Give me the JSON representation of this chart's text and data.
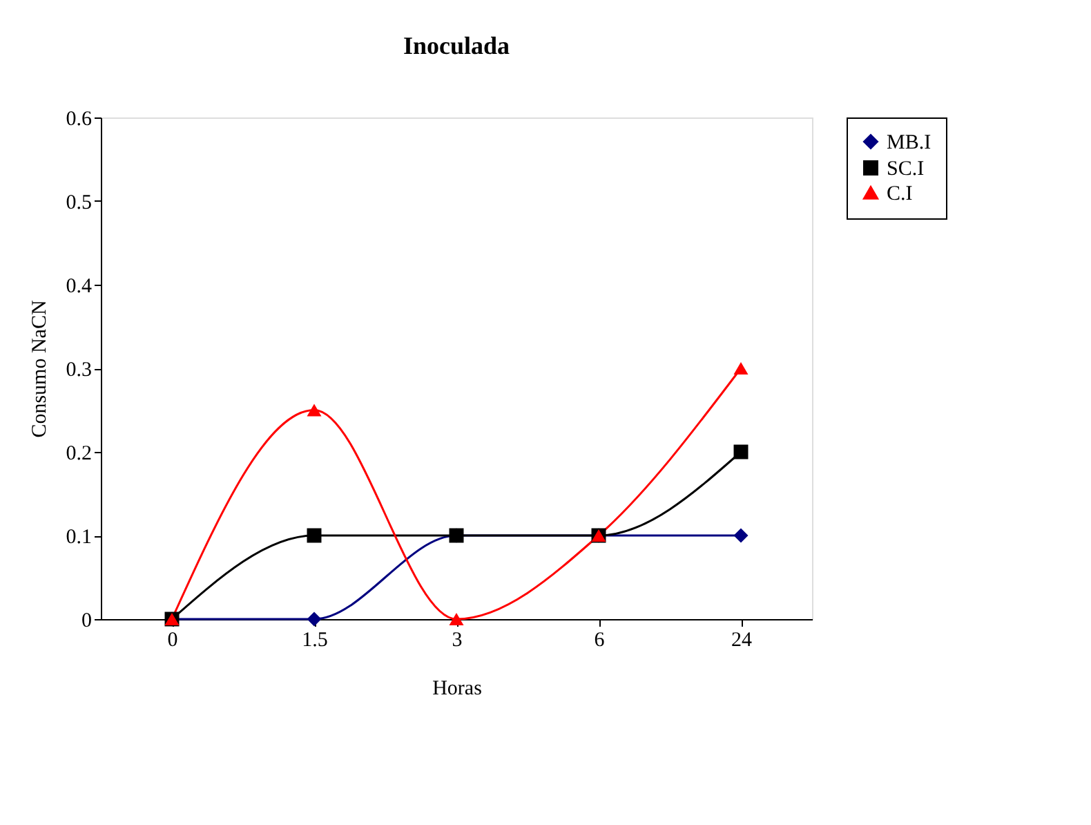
{
  "chart_data": {
    "type": "line",
    "title": "Inoculada",
    "xlabel": "Horas",
    "ylabel": "Consumo NaCN",
    "categories": [
      "0",
      "1.5",
      "3",
      "6",
      "24"
    ],
    "series": [
      {
        "name": "MB.I",
        "color": "#000080",
        "marker": "diamond",
        "values": [
          0,
          0,
          0.1,
          0.1,
          0.1
        ]
      },
      {
        "name": "SC.I",
        "color": "#000000",
        "marker": "square",
        "values": [
          0,
          0.1,
          0.1,
          0.1,
          0.2
        ]
      },
      {
        "name": "C.I",
        "color": "#ff0000",
        "marker": "triangle",
        "values": [
          0,
          0.25,
          0,
          0.1,
          0.3
        ]
      }
    ],
    "ylim": [
      0,
      0.6
    ],
    "yticks": [
      0,
      0.1,
      0.2,
      0.3,
      0.4,
      0.5,
      0.6
    ],
    "grid": false,
    "legend": "right"
  }
}
